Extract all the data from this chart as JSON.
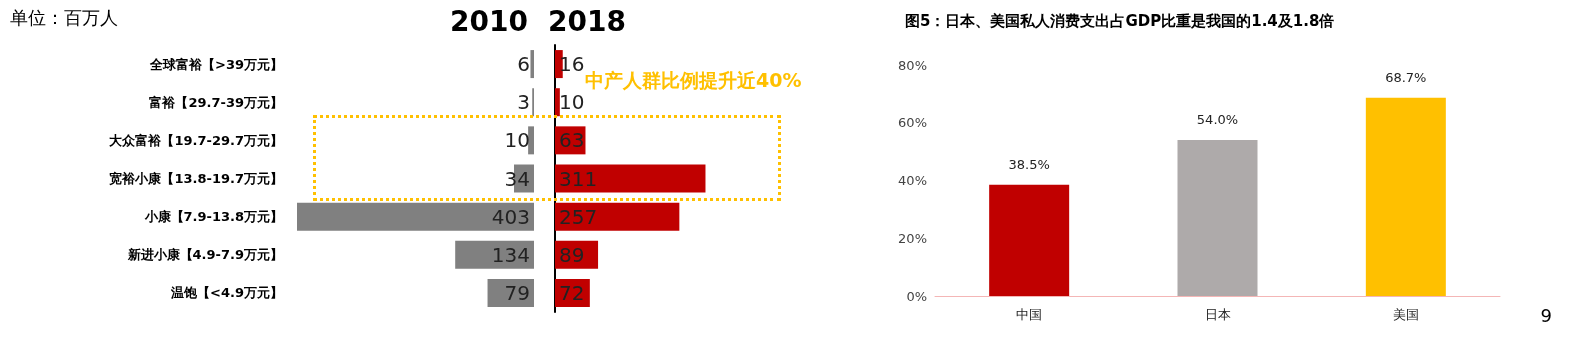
{
  "chart_data": [
    {
      "type": "bar",
      "orientation": "horizontal",
      "title": "2010",
      "categories": [
        "全球富裕【>39万元】",
        "富裕【29.7-39万元】",
        "大众富裕【19.7-29.7万元】",
        "宽裕小康【13.8-19.7万元】",
        "小康【7.9-13.8万元】",
        "新进小康【4.9-7.9万元】",
        "温饱【<4.9万元】"
      ],
      "values": [
        6,
        3,
        10,
        34,
        403,
        134,
        79
      ],
      "color": "#808080",
      "data_labels": true,
      "annotations": [
        "单位：百万人"
      ]
    },
    {
      "type": "bar",
      "orientation": "horizontal",
      "title": "2018",
      "categories": [
        null,
        null,
        null,
        null,
        null,
        null,
        null
      ],
      "values": [
        16,
        10,
        63,
        311,
        257,
        89,
        72
      ],
      "color": "#c00000",
      "data_labels": true,
      "annotations": [
        "中产人群比例提升近40%"
      ]
    },
    {
      "type": "bar",
      "title": "图5：日本、美国私人消费支出占GDP比重是我国的1.4及1.8倍",
      "categories": [
        "中国",
        "日本",
        "美国"
      ],
      "values": [
        38.5,
        54.0,
        68.7
      ],
      "colors": [
        "#c00000",
        "#aeaaaa",
        "#ffc000"
      ],
      "value_labels": [
        "38.5%",
        "54.0%",
        "68.7%"
      ],
      "ylim": [
        0,
        80
      ],
      "yticks": [
        {
          "value": 0,
          "label": "0%"
        },
        {
          "value": 20,
          "label": "20%"
        },
        {
          "value": 40,
          "label": "40%"
        },
        {
          "value": 60,
          "label": "60%"
        },
        {
          "value": 80,
          "label": "80%"
        }
      ],
      "grid": false,
      "annotations": [
        "9"
      ]
    }
  ]
}
